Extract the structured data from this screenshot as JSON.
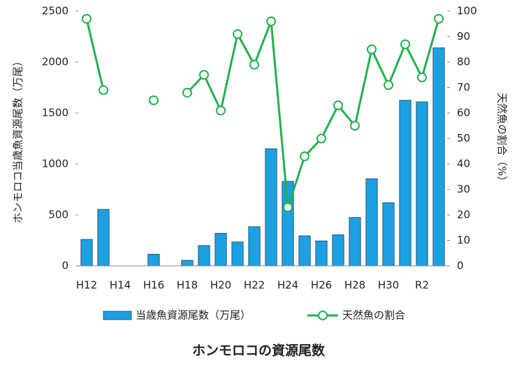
{
  "chart_data": {
    "type": "combo",
    "title": "ホンモロコの資源尾数",
    "y_label": "ホンモロコ当歳魚資源尾数（万尾）",
    "y2_label": "天然魚の割合（%）",
    "categories": [
      "H12",
      null,
      "H14",
      null,
      "H16",
      null,
      "H18",
      null,
      "H20",
      null,
      "H22",
      null,
      "H24",
      null,
      "H26",
      null,
      "H28",
      null,
      "H30",
      null,
      "R2",
      null
    ],
    "series": [
      {
        "name": "当歳魚資源尾数（万尾）",
        "type": "bar",
        "color": "#1ba1e2",
        "values": [
          260,
          555,
          0,
          0,
          115,
          0,
          55,
          200,
          320,
          235,
          385,
          1150,
          830,
          295,
          245,
          305,
          475,
          855,
          620,
          1625,
          1610,
          2140
        ]
      },
      {
        "name": "天然魚の割合",
        "type": "line",
        "axis": "y2",
        "color": "#22b14c",
        "values": [
          97,
          69,
          null,
          null,
          65,
          null,
          68,
          75,
          61,
          91,
          79,
          96,
          23,
          43,
          50,
          63,
          55,
          85,
          71,
          87,
          74,
          97
        ]
      }
    ],
    "ylim": [
      0,
      2500
    ],
    "yticks": [
      0,
      500,
      1000,
      1500,
      2000,
      2500
    ],
    "y2lim": [
      0,
      100
    ],
    "y2ticks": [
      0,
      10,
      20,
      30,
      40,
      50,
      60,
      70,
      80,
      90,
      100
    ],
    "grid": false,
    "legend": "bottom"
  }
}
